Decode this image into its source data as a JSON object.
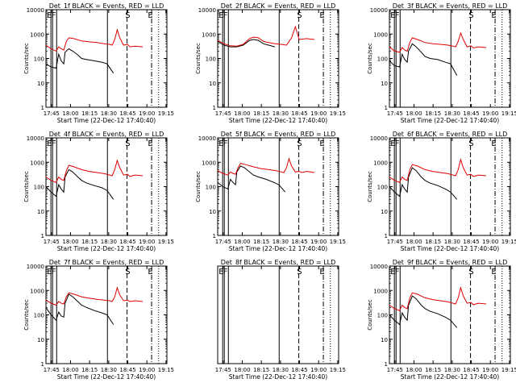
{
  "chart_data": [
    {
      "type": "line",
      "title": "Det_1f BLACK = Events, RED = LLD",
      "xlabel": "Start Time (22-Dec-12 17:40:40)",
      "ylabel": "Counts/sec",
      "x_ticks": [
        "17:45",
        "18:00",
        "18:15",
        "18:30",
        "18:45",
        "19:00",
        "19:15"
      ],
      "y_ticks": [
        "1",
        "10",
        "100",
        "1000",
        "10000"
      ],
      "ylim": [
        1,
        10000
      ],
      "yscale": "log",
      "marker_labels": [
        "E",
        "F",
        "S",
        "E"
      ],
      "series": [
        {
          "name": "Events",
          "color": "#000000",
          "x": [
            0,
            4,
            8,
            10,
            12,
            14,
            15,
            18,
            21,
            25,
            28,
            32,
            38,
            44,
            48,
            53
          ],
          "y": [
            60,
            45,
            40,
            150,
            80,
            60,
            180,
            250,
            200,
            140,
            100,
            90,
            80,
            70,
            60,
            25
          ]
        },
        {
          "name": "LLD",
          "color": "#e00000",
          "x": [
            0,
            4,
            8,
            10,
            12,
            14,
            16,
            18,
            22,
            28,
            34,
            40,
            46,
            50,
            52,
            54,
            56,
            58,
            61,
            64,
            66,
            70,
            76
          ],
          "y": [
            350,
            250,
            200,
            300,
            250,
            220,
            500,
            700,
            650,
            520,
            480,
            450,
            400,
            380,
            350,
            600,
            1500,
            700,
            350,
            380,
            300,
            320,
            300
          ]
        }
      ]
    },
    {
      "type": "line",
      "title": "Det_2f BLACK = Events, RED = LLD",
      "xlabel": "Start Time (22-Dec-12 17:40:40)",
      "ylabel": "Counts/sec",
      "x_ticks": [
        "17:45",
        "18:00",
        "18:15",
        "18:30",
        "18:45",
        "19:00",
        "19:15"
      ],
      "y_ticks": [
        "1",
        "10",
        "100",
        "1000",
        "10000"
      ],
      "ylim": [
        1,
        10000
      ],
      "yscale": "log",
      "marker_labels": [
        "E",
        "F",
        "S",
        "E"
      ],
      "series": [
        {
          "name": "Events",
          "color": "#000000",
          "x": [
            0,
            5,
            10,
            15,
            20,
            25,
            28,
            32,
            36,
            40,
            45
          ],
          "y": [
            500,
            350,
            300,
            300,
            350,
            550,
            600,
            550,
            400,
            350,
            300
          ]
        },
        {
          "name": "LLD",
          "color": "#e00000",
          "x": [
            0,
            5,
            10,
            15,
            20,
            25,
            28,
            32,
            36,
            40,
            45,
            50,
            54,
            58,
            61,
            64,
            70,
            76
          ],
          "y": [
            550,
            400,
            330,
            320,
            380,
            650,
            750,
            700,
            500,
            450,
            400,
            380,
            350,
            700,
            2000,
            600,
            650,
            600
          ]
        }
      ]
    },
    {
      "type": "line",
      "title": "Det_3f BLACK = Events, RED = LLD",
      "xlabel": "Start Time (22-Dec-12 17:40:40)",
      "ylabel": "Counts/sec",
      "x_ticks": [
        "17:45",
        "18:00",
        "18:15",
        "18:30",
        "18:45",
        "19:00",
        "19:15"
      ],
      "y_ticks": [
        "1",
        "10",
        "100",
        "1000",
        "10000"
      ],
      "ylim": [
        1,
        10000
      ],
      "yscale": "log",
      "marker_labels": [
        "E",
        "F",
        "S",
        "E"
      ],
      "series": [
        {
          "name": "Events",
          "color": "#000000",
          "x": [
            0,
            4,
            8,
            10,
            12,
            14,
            15,
            18,
            21,
            25,
            28,
            32,
            38,
            44,
            48,
            53
          ],
          "y": [
            80,
            50,
            45,
            150,
            90,
            70,
            200,
            400,
            300,
            180,
            120,
            100,
            90,
            70,
            60,
            20
          ]
        },
        {
          "name": "LLD",
          "color": "#e00000",
          "x": [
            0,
            4,
            8,
            10,
            12,
            14,
            16,
            18,
            22,
            28,
            34,
            40,
            46,
            50,
            52,
            54,
            56,
            58,
            61,
            64,
            66,
            70,
            76
          ],
          "y": [
            300,
            200,
            180,
            280,
            220,
            200,
            450,
            700,
            600,
            450,
            400,
            380,
            350,
            320,
            300,
            500,
            1100,
            600,
            300,
            330,
            270,
            300,
            280
          ]
        }
      ]
    },
    {
      "type": "line",
      "title": "Det_4f BLACK = Events, RED = LLD",
      "xlabel": "Start Time (22-Dec-12 17:40:40)",
      "ylabel": "Counts/sec",
      "x_ticks": [
        "17:45",
        "18:00",
        "18:15",
        "18:30",
        "18:45",
        "19:00",
        "19:15"
      ],
      "y_ticks": [
        "1",
        "10",
        "100",
        "1000",
        "10000"
      ],
      "ylim": [
        1,
        10000
      ],
      "yscale": "log",
      "marker_labels": [
        "E",
        "F",
        "S",
        "E"
      ],
      "series": [
        {
          "name": "Events",
          "color": "#000000",
          "x": [
            0,
            4,
            8,
            10,
            12,
            14,
            15,
            18,
            21,
            25,
            28,
            32,
            38,
            44,
            48,
            53
          ],
          "y": [
            100,
            60,
            40,
            120,
            80,
            60,
            250,
            500,
            400,
            250,
            180,
            140,
            110,
            90,
            70,
            30
          ]
        },
        {
          "name": "LLD",
          "color": "#e00000",
          "x": [
            0,
            4,
            8,
            10,
            12,
            14,
            16,
            18,
            22,
            28,
            34,
            40,
            46,
            50,
            52,
            54,
            56,
            58,
            61,
            64,
            66,
            70,
            76
          ],
          "y": [
            250,
            180,
            150,
            250,
            200,
            180,
            450,
            750,
            650,
            500,
            420,
            380,
            340,
            300,
            280,
            500,
            1200,
            600,
            300,
            320,
            260,
            300,
            280
          ]
        }
      ]
    },
    {
      "type": "line",
      "title": "Det_5f BLACK = Events, RED = LLD",
      "xlabel": "Start Time (22-Dec-12 17:40:40)",
      "ylabel": "Counts/sec",
      "x_ticks": [
        "17:45",
        "18:00",
        "18:15",
        "18:30",
        "18:45",
        "19:00",
        "19:15"
      ],
      "y_ticks": [
        "1",
        "10",
        "100",
        "1000",
        "10000"
      ],
      "ylim": [
        1,
        10000
      ],
      "yscale": "log",
      "marker_labels": [
        "E",
        "F",
        "S",
        "E"
      ],
      "series": [
        {
          "name": "Events",
          "color": "#000000",
          "x": [
            0,
            4,
            8,
            10,
            12,
            14,
            15,
            18,
            21,
            25,
            28,
            32,
            38,
            44,
            48,
            53
          ],
          "y": [
            150,
            100,
            80,
            200,
            150,
            120,
            400,
            700,
            600,
            400,
            300,
            250,
            200,
            150,
            120,
            60
          ]
        },
        {
          "name": "LLD",
          "color": "#e00000",
          "x": [
            0,
            4,
            8,
            10,
            12,
            14,
            16,
            18,
            22,
            28,
            34,
            40,
            46,
            50,
            52,
            54,
            56,
            58,
            61,
            64,
            66,
            70,
            76
          ],
          "y": [
            450,
            350,
            300,
            400,
            350,
            320,
            600,
            900,
            800,
            650,
            550,
            500,
            450,
            400,
            380,
            600,
            1400,
            700,
            400,
            420,
            380,
            420,
            380
          ]
        }
      ]
    },
    {
      "type": "line",
      "title": "Det_6f BLACK = Events, RED = LLD",
      "xlabel": "Start Time (22-Dec-12 17:40:40)",
      "ylabel": "Counts/sec",
      "x_ticks": [
        "17:45",
        "18:00",
        "18:15",
        "18:30",
        "18:45",
        "19:00",
        "19:15"
      ],
      "y_ticks": [
        "1",
        "10",
        "100",
        "1000",
        "10000"
      ],
      "ylim": [
        1,
        10000
      ],
      "yscale": "log",
      "marker_labels": [
        "E",
        "F",
        "S",
        "E"
      ],
      "series": [
        {
          "name": "Events",
          "color": "#000000",
          "x": [
            0,
            4,
            8,
            10,
            12,
            14,
            15,
            18,
            21,
            25,
            28,
            32,
            38,
            44,
            48,
            53
          ],
          "y": [
            100,
            60,
            40,
            120,
            80,
            60,
            250,
            600,
            450,
            250,
            180,
            140,
            110,
            80,
            60,
            30
          ]
        },
        {
          "name": "LLD",
          "color": "#e00000",
          "x": [
            0,
            4,
            8,
            10,
            12,
            14,
            16,
            18,
            22,
            28,
            34,
            40,
            46,
            50,
            52,
            54,
            56,
            58,
            61,
            64,
            66,
            70,
            76
          ],
          "y": [
            250,
            180,
            150,
            250,
            200,
            180,
            500,
            800,
            700,
            500,
            420,
            380,
            340,
            300,
            280,
            500,
            1300,
            600,
            300,
            320,
            260,
            300,
            280
          ]
        }
      ]
    },
    {
      "type": "line",
      "title": "Det_7f BLACK = Events, RED = LLD",
      "xlabel": "Start Time (22-Dec-12 17:40:40)",
      "ylabel": "Counts/sec",
      "x_ticks": [
        "17:45",
        "18:00",
        "18:15",
        "18:30",
        "18:45",
        "19:00",
        "19:15"
      ],
      "y_ticks": [
        "1",
        "10",
        "100",
        "1000",
        "10000"
      ],
      "ylim": [
        1,
        10000
      ],
      "yscale": "log",
      "marker_labels": [
        "E",
        "F",
        "S",
        "E"
      ],
      "series": [
        {
          "name": "Events",
          "color": "#000000",
          "x": [
            0,
            4,
            8,
            10,
            12,
            14,
            15,
            18,
            21,
            25,
            28,
            32,
            38,
            44,
            48,
            53
          ],
          "y": [
            200,
            100,
            60,
            130,
            90,
            80,
            300,
            700,
            550,
            350,
            250,
            200,
            150,
            120,
            100,
            40
          ]
        },
        {
          "name": "LLD",
          "color": "#e00000",
          "x": [
            0,
            4,
            8,
            10,
            12,
            14,
            16,
            18,
            22,
            28,
            34,
            40,
            46,
            50,
            52,
            54,
            56,
            58,
            61,
            64,
            66,
            70,
            76
          ],
          "y": [
            400,
            300,
            250,
            350,
            300,
            280,
            550,
            800,
            700,
            550,
            480,
            430,
            400,
            380,
            350,
            550,
            1300,
            650,
            380,
            400,
            350,
            380,
            350
          ]
        }
      ]
    },
    {
      "type": "line",
      "title": "Det_8f BLACK = Events, RED = LLD",
      "xlabel": "Start Time (22-Dec-12 17:40:40)",
      "ylabel": "",
      "x_ticks": [
        "17:45",
        "18:00",
        "18:15",
        "18:30",
        "18:45",
        "19:00",
        "19:15"
      ],
      "y_ticks": [],
      "ylim": [
        1,
        10000
      ],
      "yscale": "log",
      "marker_labels": [
        "E",
        "F",
        "S",
        "E"
      ],
      "series": []
    },
    {
      "type": "line",
      "title": "Det_9f BLACK = Events, RED = LLD",
      "xlabel": "Start Time (22-Dec-12 17:40:40)",
      "ylabel": "Counts/sec",
      "x_ticks": [
        "17:45",
        "18:00",
        "18:15",
        "18:30",
        "18:45",
        "19:00",
        "19:15"
      ],
      "y_ticks": [
        "1",
        "10",
        "100",
        "1000",
        "10000"
      ],
      "ylim": [
        1,
        10000
      ],
      "yscale": "log",
      "marker_labels": [
        "E",
        "F",
        "S",
        "E"
      ],
      "series": [
        {
          "name": "Events",
          "color": "#000000",
          "x": [
            0,
            4,
            8,
            10,
            12,
            14,
            15,
            18,
            21,
            25,
            28,
            32,
            38,
            44,
            48,
            53
          ],
          "y": [
            100,
            60,
            40,
            120,
            80,
            60,
            250,
            600,
            450,
            250,
            180,
            140,
            110,
            80,
            60,
            30
          ]
        },
        {
          "name": "LLD",
          "color": "#e00000",
          "x": [
            0,
            4,
            8,
            10,
            12,
            14,
            16,
            18,
            22,
            28,
            34,
            40,
            46,
            50,
            52,
            54,
            56,
            58,
            61,
            64,
            66,
            70,
            76
          ],
          "y": [
            250,
            180,
            150,
            250,
            200,
            180,
            500,
            800,
            700,
            500,
            420,
            380,
            340,
            300,
            280,
            500,
            1300,
            600,
            300,
            320,
            260,
            300,
            280
          ]
        }
      ]
    }
  ]
}
